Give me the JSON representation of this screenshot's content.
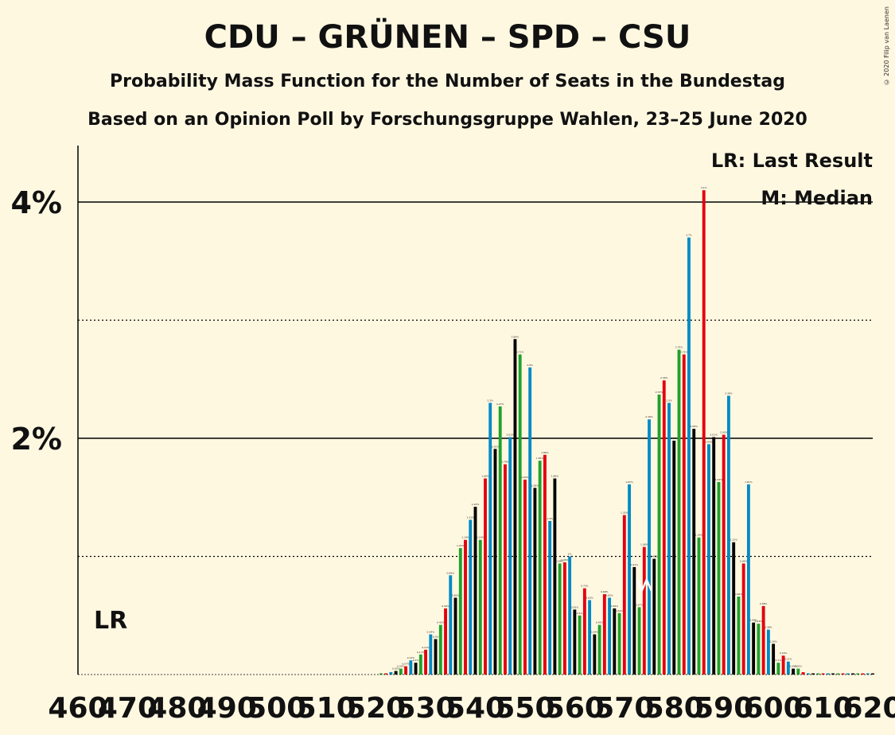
{
  "title": "CDU – GRÜNEN – SPD – CSU",
  "subtitle": "Probability Mass Function for the Number of Seats in the Bundestag",
  "source": "Based on an Opinion Poll by Forschungsgruppe Wahlen, 23–25 June 2020",
  "copyright": "© 2020 Filip van Laenen",
  "legend": {
    "last_result": "LR: Last Result",
    "median": "M: Median"
  },
  "markers": {
    "last_result_label": "LR",
    "median_label": "M",
    "last_result_seat": 462,
    "median_seat": 574
  },
  "colors": {
    "background": "#FFF8E1",
    "CDU": "#000000",
    "GRÜNEN": "#1FA12D",
    "SPD": "#E3000F",
    "CSU": "#008AC5"
  },
  "chart_data": {
    "type": "bar",
    "x_ticks": [
      "460",
      "470",
      "480",
      "490",
      "500",
      "510",
      "520",
      "530",
      "540",
      "550",
      "560",
      "570",
      "580",
      "590",
      "600",
      "610",
      "620"
    ],
    "y_ticks": [
      "2%",
      "4%"
    ],
    "ylim": [
      0,
      4.5
    ],
    "xlim": [
      460,
      620
    ],
    "grid": {
      "solid": [
        2,
        4
      ],
      "dotted": [
        1,
        3
      ]
    },
    "series_colors": [
      "#000000",
      "#1FA12D",
      "#E3000F",
      "#008AC5"
    ],
    "x": [
      521,
      522,
      523,
      524,
      525,
      526,
      527,
      528,
      529,
      530,
      531,
      532,
      533,
      534,
      535,
      536,
      537,
      538,
      539,
      540,
      541,
      542,
      543,
      544,
      545,
      546,
      547,
      548,
      549,
      550,
      551,
      552,
      553,
      554,
      555,
      556,
      557,
      558,
      559,
      560,
      561,
      562,
      563,
      564,
      565,
      566,
      567,
      568,
      569,
      570,
      571,
      572,
      573,
      574,
      575,
      576,
      577,
      578,
      579,
      580,
      581,
      582,
      583,
      584,
      585,
      586,
      587,
      588,
      589,
      590,
      591,
      592,
      593,
      594,
      595,
      596,
      597,
      598,
      599,
      600,
      601,
      602,
      603,
      604,
      605,
      606,
      607,
      608,
      609,
      610,
      611,
      612,
      613,
      614,
      615,
      616,
      617,
      618,
      619,
      620
    ],
    "values": [
      0.01,
      0.01,
      0.02,
      0.03,
      0.05,
      0.07,
      0.12,
      0.1,
      0.17,
      0.21,
      0.34,
      0.3,
      0.42,
      0.56,
      0.84,
      0.65,
      1.07,
      1.14,
      1.31,
      1.42,
      1.14,
      1.66,
      2.3,
      1.91,
      2.27,
      1.78,
      2.01,
      2.84,
      2.71,
      1.65,
      2.6,
      1.58,
      1.81,
      1.86,
      1.3,
      1.66,
      0.94,
      0.95,
      1.0,
      0.55,
      0.5,
      0.73,
      0.63,
      0.34,
      0.42,
      0.68,
      0.65,
      0.56,
      0.52,
      1.35,
      1.61,
      0.91,
      0.57,
      1.08,
      2.16,
      0.98,
      2.37,
      2.49,
      2.3,
      1.98,
      2.75,
      2.71,
      3.7,
      2.08,
      1.16,
      4.1,
      1.95,
      2.01,
      1.63,
      2.03,
      2.36,
      1.12,
      0.66,
      0.94,
      1.61,
      0.44,
      0.43,
      0.58,
      0.38,
      0.26,
      0.1,
      0.16,
      0.11,
      0.05,
      0.05,
      0.02,
      0.01,
      0.01,
      0.01,
      0.01,
      0.01,
      0.01,
      0.01,
      0.01,
      0.01,
      0.01,
      0.01,
      0.01,
      0.01,
      0.01
    ]
  }
}
